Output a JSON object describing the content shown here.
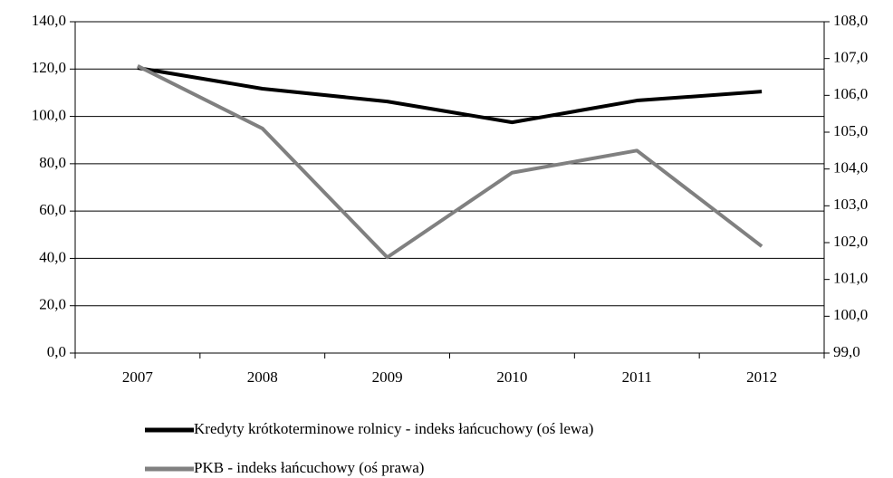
{
  "chart_data": {
    "type": "line",
    "categories": [
      "2007",
      "2008",
      "2009",
      "2010",
      "2011",
      "2012"
    ],
    "series": [
      {
        "name": "Kredyty krótkoterminowe rolnicy - indeks łańcuchowy (oś lewa)",
        "color": "#000000",
        "values": [
          120.5,
          111.7,
          106.3,
          97.5,
          106.7,
          110.5
        ]
      },
      {
        "name": "PKB - indeks łańcuchowy (oś prawa)",
        "color": "#808080",
        "axis": "y2",
        "values": [
          106.8,
          105.1,
          101.6,
          103.9,
          104.5,
          101.9
        ]
      }
    ],
    "ylim": [
      0,
      140
    ],
    "yticks": [
      {
        "value": 0,
        "label": "0,0"
      },
      {
        "value": 20,
        "label": "20,0"
      },
      {
        "value": 40,
        "label": "40,0"
      },
      {
        "value": 60,
        "label": "60,0"
      },
      {
        "value": 80,
        "label": "80,0"
      },
      {
        "value": 100,
        "label": "100,0"
      },
      {
        "value": 120,
        "label": "120,0"
      },
      {
        "value": 140,
        "label": "140,0"
      }
    ],
    "y2lim": [
      99,
      108
    ],
    "y2ticks": [
      {
        "value": 99,
        "label": "99,0"
      },
      {
        "value": 100,
        "label": "100,0"
      },
      {
        "value": 101,
        "label": "101,0"
      },
      {
        "value": 102,
        "label": "102,0"
      },
      {
        "value": 103,
        "label": "103,0"
      },
      {
        "value": 104,
        "label": "104,0"
      },
      {
        "value": 105,
        "label": "105,0"
      },
      {
        "value": 106,
        "label": "106,0"
      },
      {
        "value": 107,
        "label": "107,0"
      },
      {
        "value": 108,
        "label": "108,0"
      }
    ],
    "grid": true,
    "legend": "bottom"
  }
}
